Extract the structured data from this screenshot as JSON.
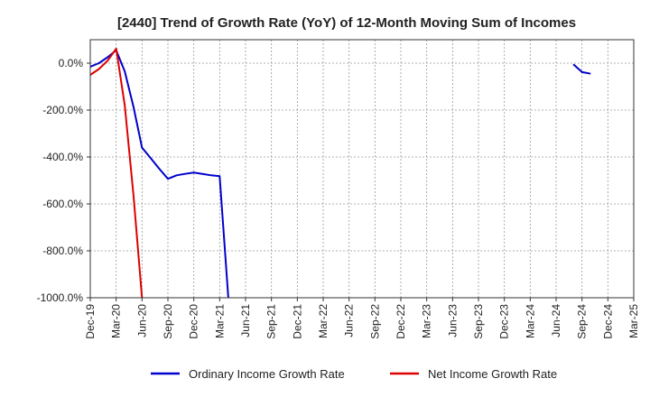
{
  "chart_data": {
    "type": "line",
    "title": "[2440]  Trend of Growth Rate (YoY) of 12-Month Moving Sum of Incomes",
    "xlabel": "",
    "ylabel": "",
    "x_ticks": [
      "Dec-19",
      "Mar-20",
      "Jun-20",
      "Sep-20",
      "Dec-20",
      "Mar-21",
      "Jun-21",
      "Sep-21",
      "Dec-21",
      "Mar-22",
      "Jun-22",
      "Sep-22",
      "Dec-22",
      "Mar-23",
      "Jun-23",
      "Sep-23",
      "Dec-23",
      "Mar-24",
      "Jun-24",
      "Sep-24",
      "Dec-24",
      "Mar-25"
    ],
    "y_ticks": [
      "0.0%",
      "-200.0%",
      "-400.0%",
      "-600.0%",
      "-800.0%",
      "-1000.0%"
    ],
    "y_tick_values": [
      0,
      -200,
      -400,
      -600,
      -800,
      -1000
    ],
    "ylim": [
      -1000,
      100
    ],
    "grid": true,
    "legend_position": "bottom",
    "series": [
      {
        "name": "Ordinary Income Growth Rate",
        "color": "#0000cc",
        "points": [
          [
            "Dec-19",
            -15
          ],
          [
            "Jan-20",
            0
          ],
          [
            "Feb-20",
            25
          ],
          [
            "Mar-20",
            55
          ],
          [
            "Apr-20",
            -35
          ],
          [
            "May-20",
            -185
          ],
          [
            "Jun-20",
            -360
          ],
          [
            "Jul-20",
            -405
          ],
          [
            "Aug-20",
            -450
          ],
          [
            "Sep-20",
            -493
          ],
          [
            "Oct-20",
            -478
          ],
          [
            "Nov-20",
            -472
          ],
          [
            "Dec-20",
            -466
          ],
          [
            "Jan-21",
            -472
          ],
          [
            "Feb-21",
            -478
          ],
          [
            "Mar-21",
            -482
          ],
          [
            "Apr-21",
            -1000
          ],
          [
            "Aug-24",
            -5
          ],
          [
            "Sep-24",
            -38
          ],
          [
            "Oct-24",
            -45
          ]
        ]
      },
      {
        "name": "Net Income Growth Rate",
        "color": "#dd0000",
        "points": [
          [
            "Dec-19",
            -50
          ],
          [
            "Jan-20",
            -25
          ],
          [
            "Feb-20",
            10
          ],
          [
            "Mar-20",
            62
          ],
          [
            "Apr-20",
            -180
          ],
          [
            "May-20",
            -560
          ],
          [
            "Jun-20",
            -1000
          ]
        ]
      }
    ]
  }
}
